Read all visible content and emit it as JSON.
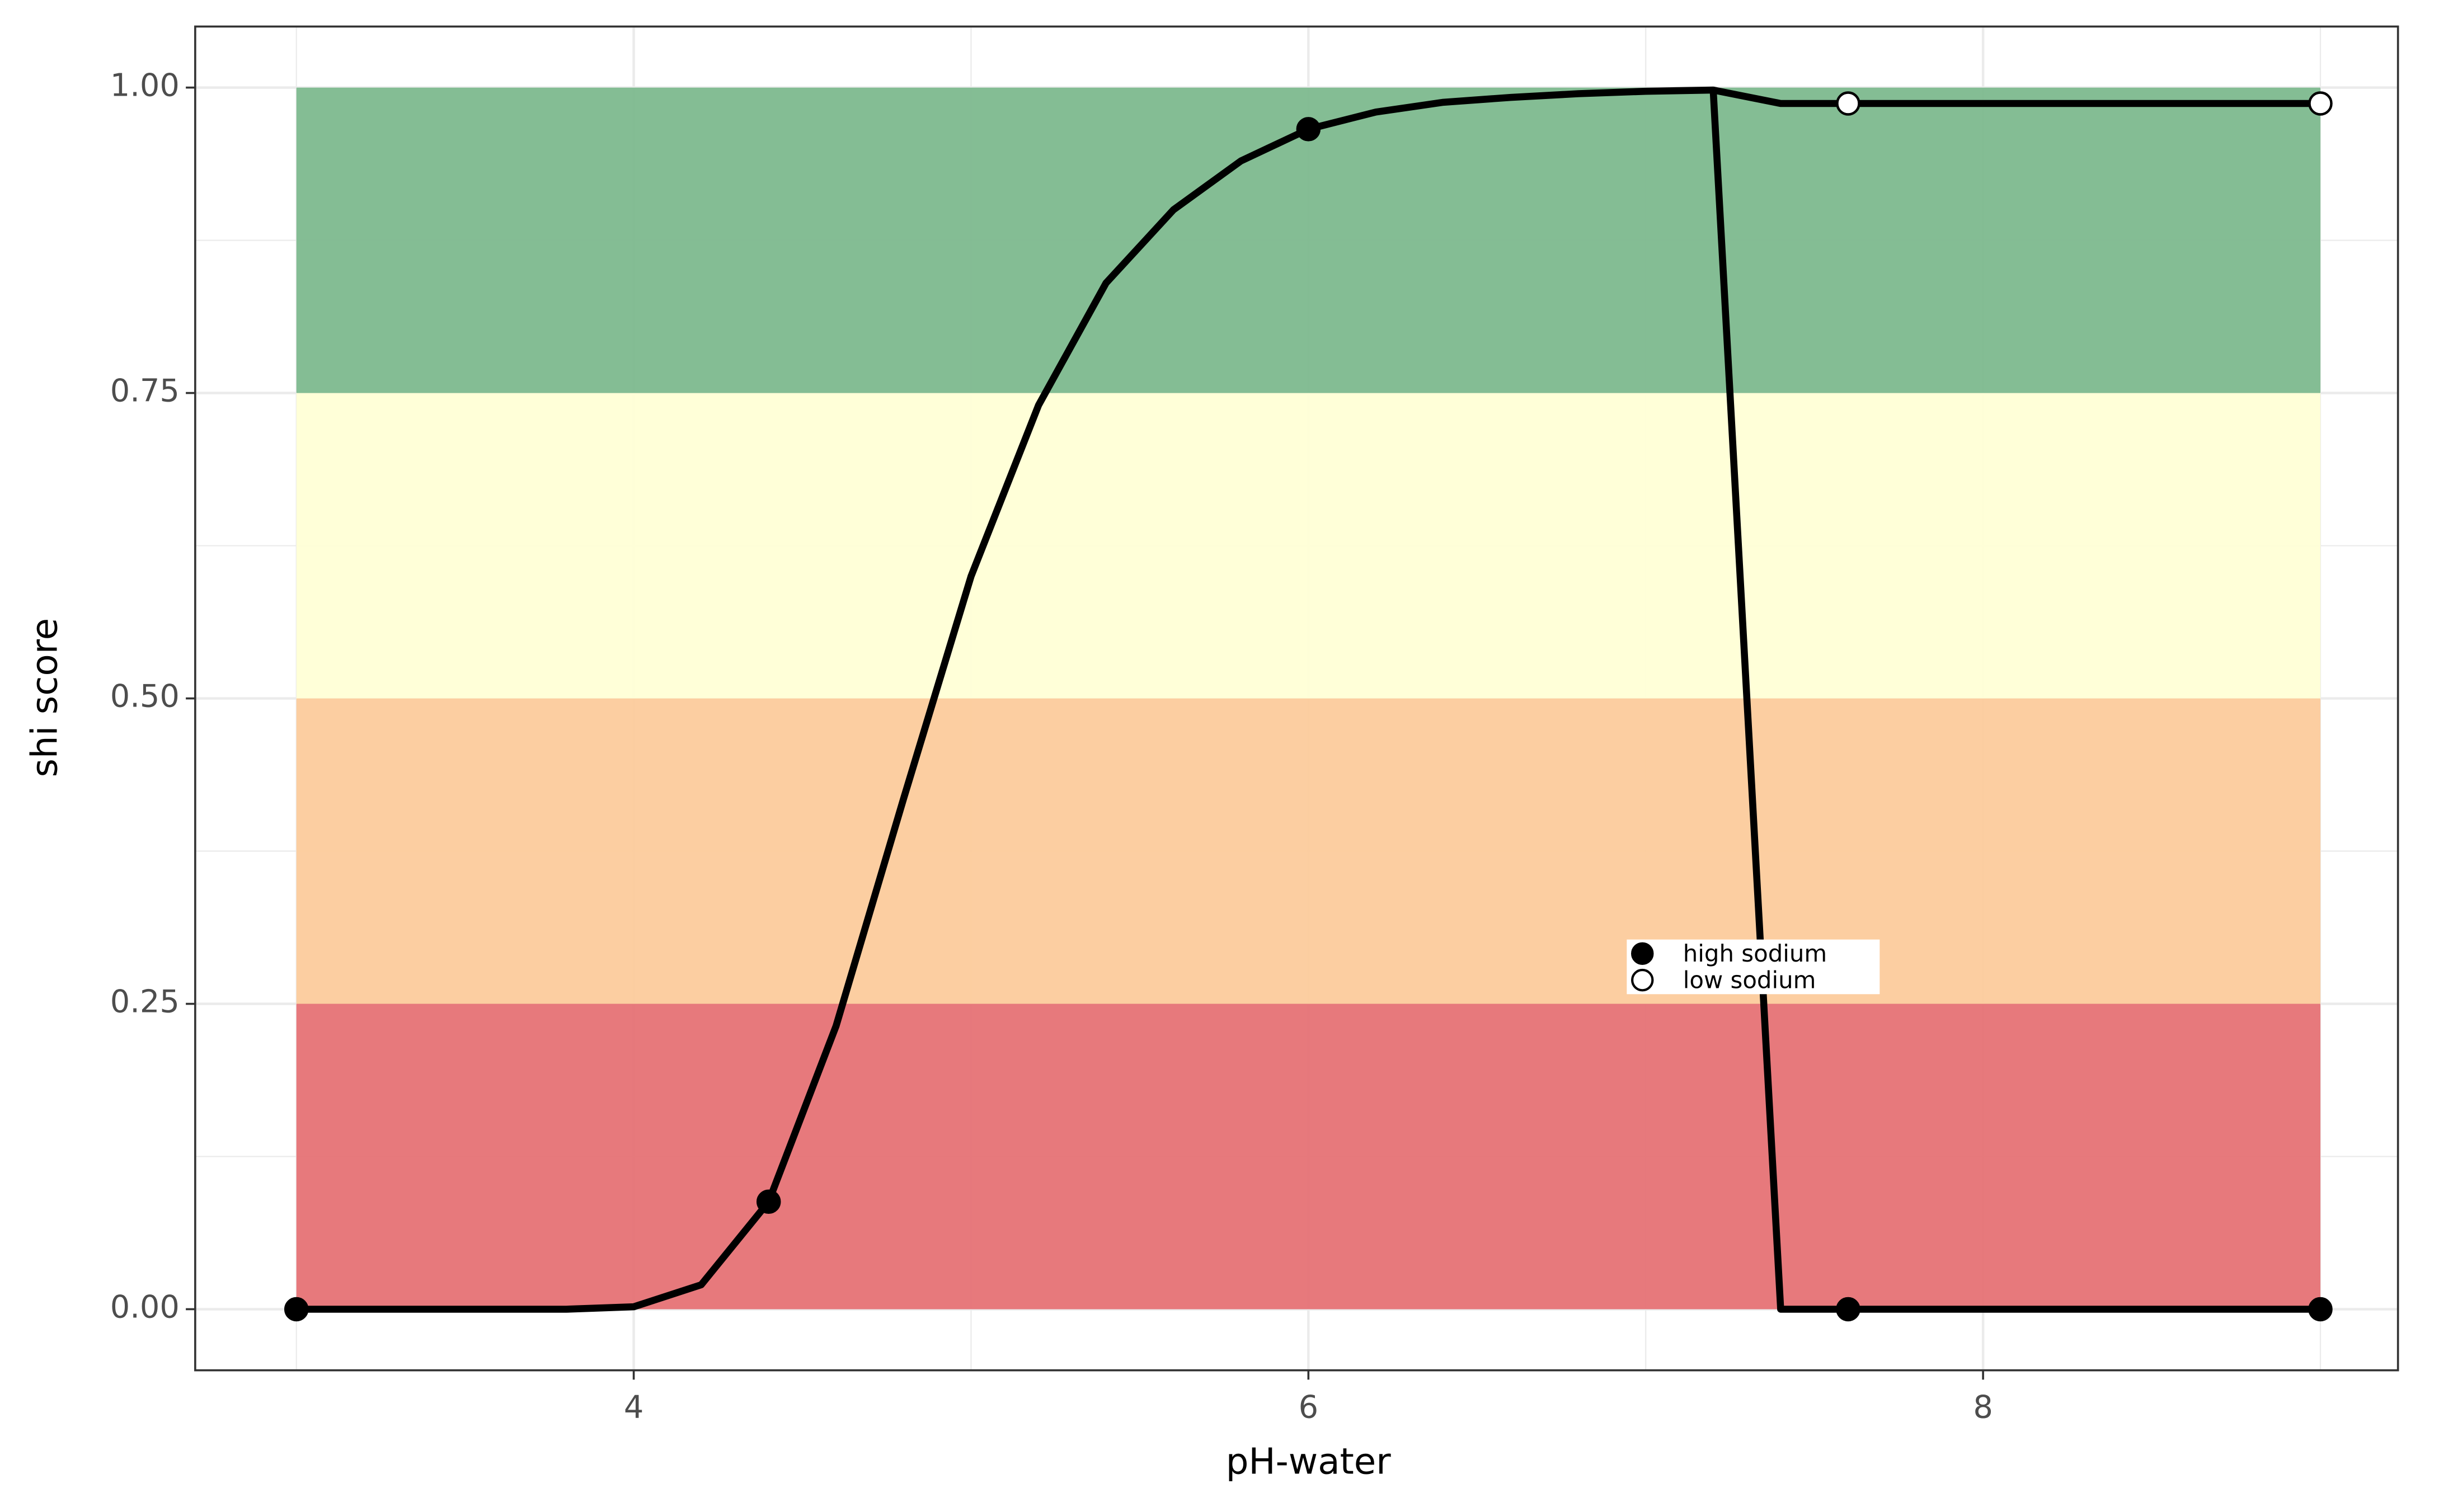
{
  "chart_data": {
    "type": "line",
    "x_label": "pH-water",
    "y_label": "shi score",
    "xlim": [
      2.7,
      9.23
    ],
    "ylim": [
      -0.05,
      1.05
    ],
    "xticks": [
      4,
      6,
      8
    ],
    "yticks": [
      {
        "value": 0,
        "label": "0.00"
      },
      {
        "value": 0.25,
        "label": "0.25"
      },
      {
        "value": 0.5,
        "label": "0.50"
      },
      {
        "value": 0.75,
        "label": "0.75"
      },
      {
        "value": 1,
        "label": "1.00"
      }
    ],
    "x_minor_grid": [
      3,
      5,
      7,
      9
    ],
    "y_minor_grid": [
      0.125,
      0.375,
      0.625,
      0.875
    ],
    "grid": true,
    "bands": [
      {
        "ymin": 0,
        "ymax": 0.25,
        "color": "#e67275"
      },
      {
        "ymin": 0.25,
        "ymax": 0.5,
        "color": "#fccb9c"
      },
      {
        "ymin": 0.5,
        "ymax": 0.75,
        "color": "#ffffd6"
      },
      {
        "ymin": 0.75,
        "ymax": 1,
        "color": "#7db98e"
      }
    ],
    "band_x": [
      3,
      9
    ],
    "legend": "inside",
    "series": [
      {
        "name": "high sodium",
        "color": "#000000",
        "marker_fill": "#000000",
        "x": [
          3,
          3.8,
          4,
          4.2,
          4.4,
          4.6,
          4.8,
          5,
          5.2,
          5.4,
          5.6,
          5.8,
          6,
          6.2,
          6.4,
          6.6,
          6.8,
          7,
          7.2,
          7.4,
          9
        ],
        "values": [
          0,
          0,
          0.002,
          0.02,
          0.088,
          0.232,
          0.418,
          0.6,
          0.74,
          0.84,
          0.9,
          0.94,
          0.966,
          0.98,
          0.988,
          0.992,
          0.995,
          0.997,
          0.998,
          0,
          0
        ],
        "points": {
          "x": [
            3,
            4.4,
            6,
            7.6,
            9
          ],
          "values": [
            0,
            0.088,
            0.966,
            0,
            0
          ]
        }
      },
      {
        "name": "low sodium",
        "color": "#000000",
        "marker_fill": "#ffffff",
        "x": [
          7.2,
          7.4,
          9
        ],
        "values": [
          0.998,
          0.987,
          0.987
        ],
        "points": {
          "x": [
            7.6,
            9
          ],
          "values": [
            0.987,
            0.987
          ]
        }
      }
    ]
  }
}
